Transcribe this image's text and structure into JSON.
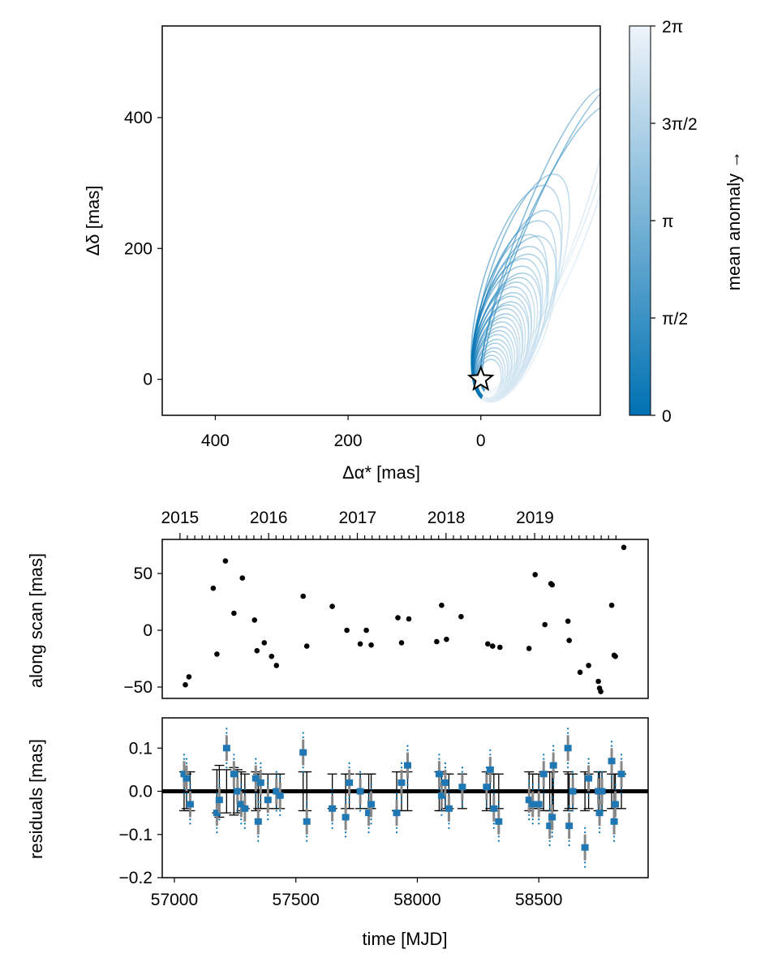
{
  "chart_data": [
    {
      "type": "scatter",
      "panel": "orbit",
      "xlabel": "Δα* [mas]",
      "ylabel": "Δδ [mas]",
      "xlim": [
        480,
        -180
      ],
      "ylim": [
        -55,
        540
      ],
      "xticks": [
        400,
        200,
        0
      ],
      "yticks": [
        0,
        200,
        400
      ],
      "marker": "star at origin",
      "orbits": [
        {
          "a": 290,
          "ecc": 0.98,
          "tilt_deg": 33
        },
        {
          "a": 282,
          "ecc": 0.975,
          "tilt_deg": 31
        },
        {
          "a": 275,
          "ecc": 0.97,
          "tilt_deg": 34
        },
        {
          "a": 200,
          "ecc": 0.92,
          "tilt_deg": 28
        },
        {
          "a": 188,
          "ecc": 0.9,
          "tilt_deg": 26
        },
        {
          "a": 170,
          "ecc": 0.9,
          "tilt_deg": 30
        },
        {
          "a": 160,
          "ecc": 0.88,
          "tilt_deg": 29
        },
        {
          "a": 150,
          "ecc": 0.86,
          "tilt_deg": 32
        },
        {
          "a": 145,
          "ecc": 0.87,
          "tilt_deg": 27
        },
        {
          "a": 138,
          "ecc": 0.85,
          "tilt_deg": 30
        },
        {
          "a": 132,
          "ecc": 0.84,
          "tilt_deg": 31
        },
        {
          "a": 126,
          "ecc": 0.83,
          "tilt_deg": 29
        },
        {
          "a": 120,
          "ecc": 0.82,
          "tilt_deg": 30
        },
        {
          "a": 115,
          "ecc": 0.82,
          "tilt_deg": 32
        },
        {
          "a": 110,
          "ecc": 0.81,
          "tilt_deg": 31
        },
        {
          "a": 105,
          "ecc": 0.8,
          "tilt_deg": 30
        },
        {
          "a": 100,
          "ecc": 0.79,
          "tilt_deg": 29
        },
        {
          "a": 96,
          "ecc": 0.78,
          "tilt_deg": 31
        },
        {
          "a": 92,
          "ecc": 0.77,
          "tilt_deg": 30
        },
        {
          "a": 88,
          "ecc": 0.76,
          "tilt_deg": 32
        },
        {
          "a": 84,
          "ecc": 0.75,
          "tilt_deg": 30
        },
        {
          "a": 80,
          "ecc": 0.74,
          "tilt_deg": 29
        },
        {
          "a": 76,
          "ecc": 0.73,
          "tilt_deg": 31
        },
        {
          "a": 72,
          "ecc": 0.72,
          "tilt_deg": 30
        },
        {
          "a": 68,
          "ecc": 0.7,
          "tilt_deg": 30
        },
        {
          "a": 64,
          "ecc": 0.68,
          "tilt_deg": 31
        },
        {
          "a": 60,
          "ecc": 0.66,
          "tilt_deg": 30
        },
        {
          "a": 56,
          "ecc": 0.64,
          "tilt_deg": 29
        },
        {
          "a": 52,
          "ecc": 0.62,
          "tilt_deg": 31
        },
        {
          "a": 48,
          "ecc": 0.6,
          "tilt_deg": 30
        },
        {
          "a": 44,
          "ecc": 0.58,
          "tilt_deg": 32
        },
        {
          "a": 40,
          "ecc": 0.55,
          "tilt_deg": 30
        },
        {
          "a": 36,
          "ecc": 0.52,
          "tilt_deg": 29
        },
        {
          "a": 32,
          "ecc": 0.5,
          "tilt_deg": 31
        }
      ],
      "colorbar": {
        "label": "mean anomaly →",
        "ticks": [
          "0",
          "π/2",
          "π",
          "3π/2",
          "2π"
        ],
        "colors": [
          "#0071b2",
          "#e8f1f8"
        ]
      }
    },
    {
      "type": "scatter",
      "panel": "along-scan",
      "ylabel": "along scan [mas]",
      "ylim": [
        -60,
        80
      ],
      "yticks": [
        -50,
        0,
        50
      ],
      "xlim": [
        56950,
        58950
      ],
      "top_axis_labels": [
        "2015",
        "2016",
        "2017",
        "2018",
        "2019"
      ],
      "top_axis_x": [
        57023,
        57388,
        57754,
        58119,
        58484
      ],
      "x": [
        57045,
        57060,
        57160,
        57175,
        57210,
        57245,
        57280,
        57330,
        57340,
        57370,
        57400,
        57420,
        57530,
        57545,
        57650,
        57710,
        57765,
        57790,
        57810,
        57920,
        57935,
        57965,
        58080,
        58100,
        58120,
        58180,
        58290,
        58310,
        58340,
        58460,
        58485,
        58525,
        58550,
        58555,
        58620,
        58625,
        58670,
        58705,
        58745,
        58750,
        58755,
        58800,
        58810,
        58815,
        58850
      ],
      "values": [
        -48,
        -41,
        37,
        -21,
        61,
        15,
        46,
        9,
        -18,
        -11,
        -23,
        -31,
        30,
        -14,
        21,
        0,
        -12,
        0,
        -13,
        11,
        -11,
        10,
        -10,
        22,
        -8,
        12,
        -12,
        -14,
        -15,
        -16,
        49,
        5,
        41,
        40,
        8,
        -9,
        -37,
        -31,
        -45,
        -51,
        -54,
        22,
        -22,
        -23,
        73
      ]
    },
    {
      "type": "scatter",
      "panel": "residuals",
      "xlabel": "time [MJD]",
      "ylabel": "residuals [mas]",
      "xlim": [
        56950,
        58950
      ],
      "ylim": [
        -0.2,
        0.17
      ],
      "xticks": [
        57000,
        57500,
        58000,
        58500
      ],
      "yticks": [
        -0.2,
        -0.1,
        0.0,
        0.1
      ],
      "x": [
        57040,
        57050,
        57065,
        57175,
        57185,
        57215,
        57245,
        57260,
        57275,
        57290,
        57335,
        57345,
        57355,
        57385,
        57420,
        57435,
        57530,
        57545,
        57650,
        57705,
        57720,
        57765,
        57800,
        57810,
        57915,
        57935,
        57960,
        58090,
        58100,
        58115,
        58130,
        58185,
        58285,
        58300,
        58315,
        58335,
        58460,
        58475,
        58500,
        58520,
        58545,
        58555,
        58560,
        58620,
        58625,
        58640,
        58690,
        58705,
        58745,
        58750,
        58760,
        58800,
        58810,
        58815,
        58840
      ],
      "values": [
        0.04,
        0.03,
        -0.03,
        -0.05,
        -0.02,
        0.1,
        0.04,
        0.0,
        -0.03,
        -0.04,
        0.03,
        -0.07,
        0.02,
        -0.02,
        0.0,
        -0.01,
        0.09,
        -0.07,
        -0.04,
        -0.06,
        0.02,
        0.0,
        -0.05,
        -0.03,
        -0.05,
        0.02,
        0.06,
        0.04,
        -0.01,
        0.02,
        -0.04,
        0.01,
        0.01,
        0.05,
        -0.04,
        -0.07,
        -0.02,
        -0.03,
        -0.03,
        0.04,
        -0.08,
        -0.06,
        0.06,
        0.1,
        -0.08,
        0.0,
        -0.13,
        0.03,
        0.0,
        -0.05,
        0.0,
        0.07,
        -0.07,
        -0.03,
        0.04
      ],
      "errorbars": [
        0.045,
        0.04,
        0.045,
        0.05,
        0.06,
        0.05,
        0.055,
        0.05,
        0.045,
        0.04,
        0.045,
        0.04,
        0.04,
        0.04,
        0.04,
        0.04,
        0.045,
        0.045,
        0.04,
        0.04,
        0.04,
        0.04,
        0.04,
        0.04,
        0.045,
        0.045,
        0.045,
        0.045,
        0.045,
        0.04,
        0.04,
        0.04,
        0.045,
        0.04,
        0.04,
        0.04,
        0.045,
        0.04,
        0.04,
        0.045,
        0.045,
        0.045,
        0.045,
        0.045,
        0.04,
        0.04,
        0.045,
        0.04,
        0.045,
        0.045,
        0.045,
        0.04,
        0.04,
        0.04,
        0.04
      ],
      "zero_line": 0.0
    }
  ]
}
